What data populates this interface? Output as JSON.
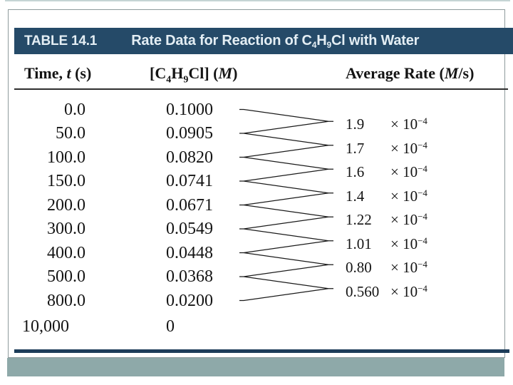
{
  "table": {
    "label": "TABLE 14.1",
    "title": {
      "pre": "Rate Data for Reaction of C",
      "sub1": "4",
      "mid": "H",
      "sub2": "9",
      "post": "Cl with Water"
    },
    "headers": {
      "time": {
        "pre": "Time, ",
        "var": "t",
        "post": " (s)"
      },
      "conc": {
        "p1": "[C",
        "s1": "4",
        "p2": "H",
        "s2": "9",
        "p3": "Cl] (",
        "var": "M",
        "p4": ")"
      },
      "rate": {
        "pre": "Average Rate (",
        "var": "M",
        "post": "/s)"
      }
    },
    "rows": [
      {
        "time": "0.0",
        "conc": "0.1000"
      },
      {
        "time": "50.0",
        "conc": "0.0905"
      },
      {
        "time": "100.0",
        "conc": "0.0820"
      },
      {
        "time": "150.0",
        "conc": "0.0741"
      },
      {
        "time": "200.0",
        "conc": "0.0671"
      },
      {
        "time": "300.0",
        "conc": "0.0549"
      },
      {
        "time": "400.0",
        "conc": "0.0448"
      },
      {
        "time": "500.0",
        "conc": "0.0368"
      },
      {
        "time": "800.0",
        "conc": "0.0200"
      },
      {
        "time": "10,000",
        "conc": "0"
      }
    ],
    "rates": [
      {
        "coef": "1.9",
        "times": "×",
        "base": "10",
        "exp": "−4"
      },
      {
        "coef": "1.7",
        "times": "×",
        "base": "10",
        "exp": "−4"
      },
      {
        "coef": "1.6",
        "times": "×",
        "base": "10",
        "exp": "−4"
      },
      {
        "coef": "1.4",
        "times": "×",
        "base": "10",
        "exp": "−4"
      },
      {
        "coef": "1.22",
        "times": "×",
        "base": "10",
        "exp": "−4"
      },
      {
        "coef": "1.01",
        "times": "×",
        "base": "10",
        "exp": "−4"
      },
      {
        "coef": "0.80",
        "times": "×",
        "base": "10",
        "exp": "−4"
      },
      {
        "coef": "0.560",
        "times": "×",
        "base": "10",
        "exp": "−4"
      }
    ]
  },
  "colors": {
    "title_bar": "#254a68",
    "title_text": "#e4eef4",
    "footer_bar": "#8ea9a9",
    "bottom_rule": "#1d3d59",
    "frame_border": "#8e9b9c",
    "body_text": "#141414"
  }
}
